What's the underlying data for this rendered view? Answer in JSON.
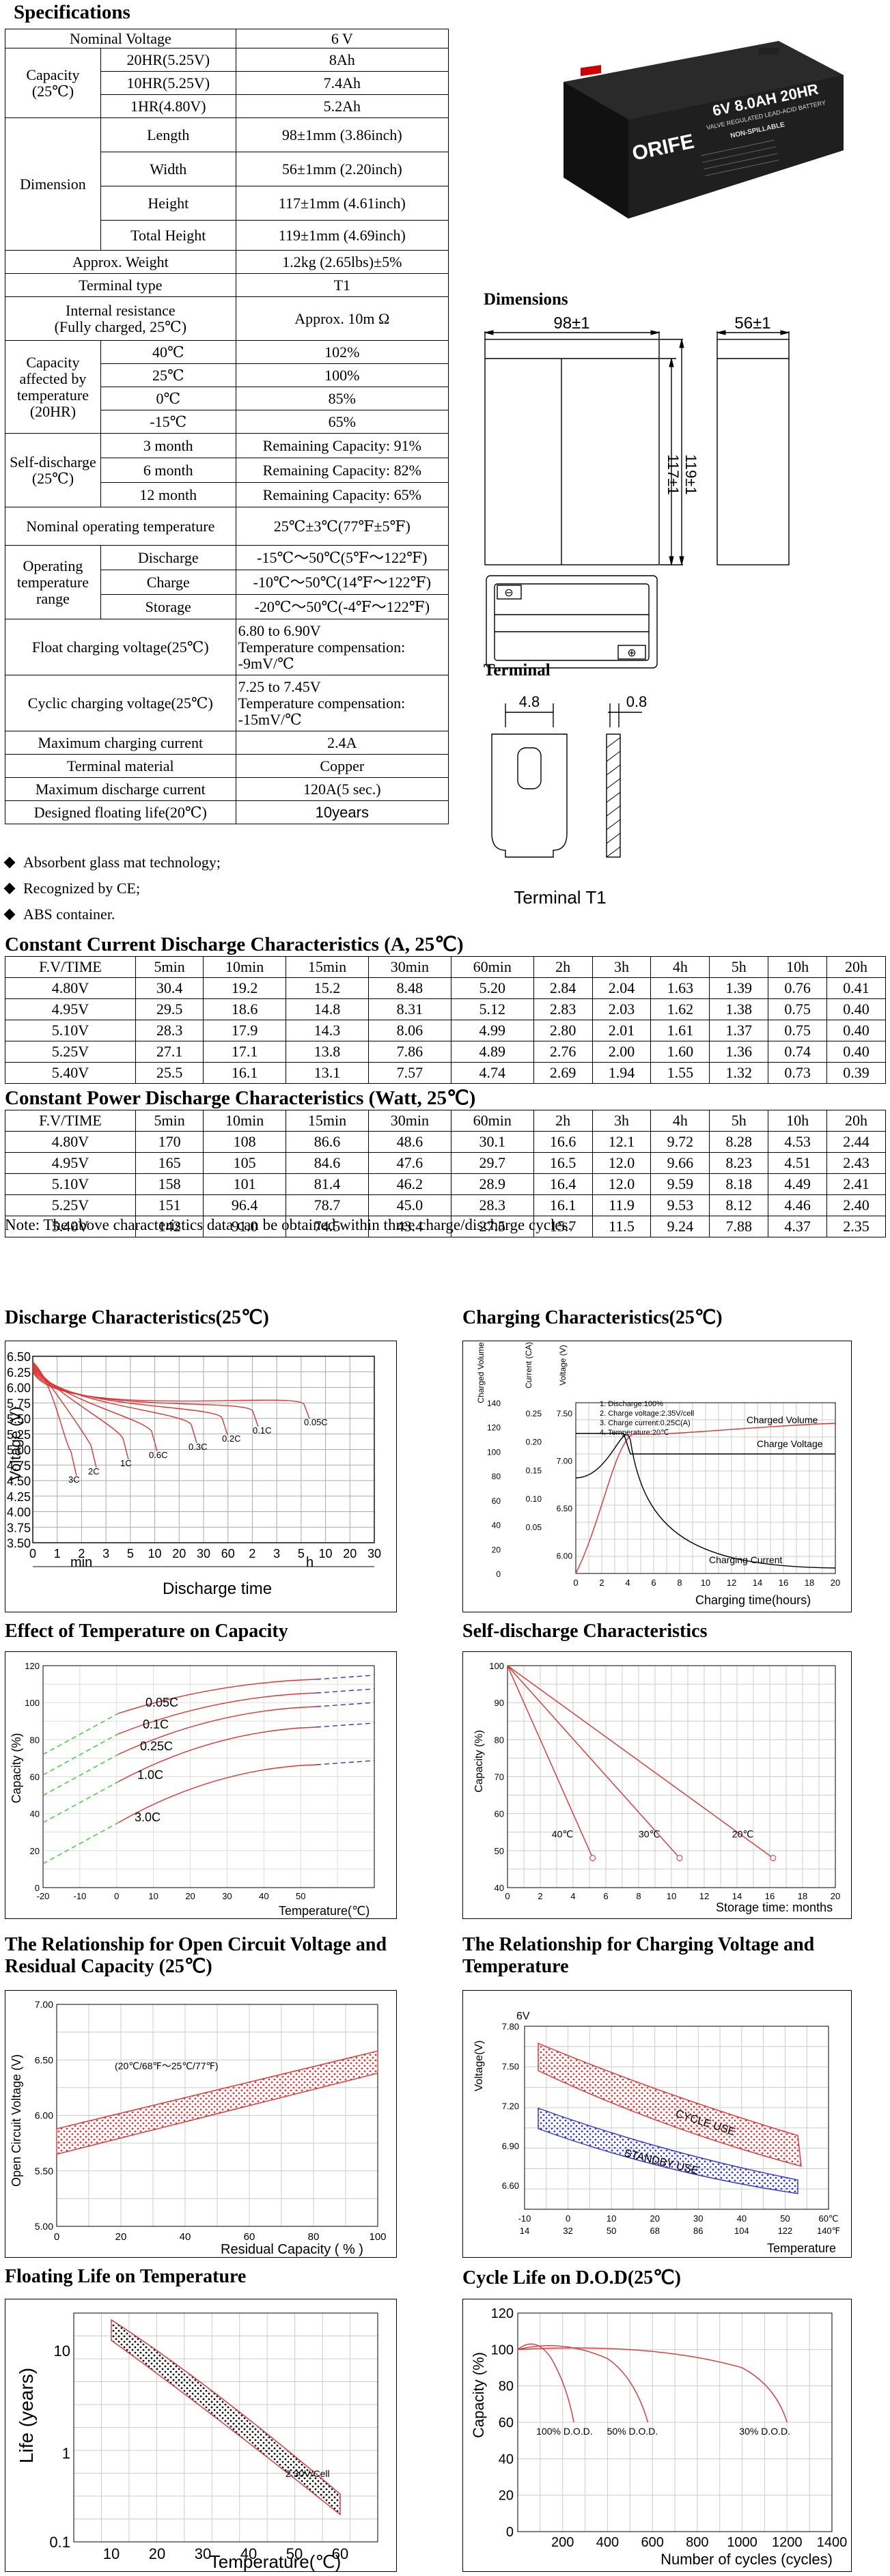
{
  "spec_title": "Specifications",
  "spec": {
    "nominal_voltage": {
      "label": "Nominal Voltage",
      "value": "6 V"
    },
    "capacity": {
      "label": "Capacity\n(25℃)",
      "rows": [
        [
          "20HR(5.25V)",
          "8Ah"
        ],
        [
          "10HR(5.25V)",
          "7.4Ah"
        ],
        [
          "1HR(4.80V)",
          "5.2Ah"
        ]
      ]
    },
    "dimension": {
      "label": "Dimension",
      "rows": [
        [
          "Length",
          "98±1mm (3.86inch)"
        ],
        [
          "Width",
          "56±1mm (2.20inch)"
        ],
        [
          "Height",
          "117±1mm (4.61inch)"
        ],
        [
          "Total Height",
          "119±1mm (4.69inch)"
        ]
      ]
    },
    "weight": {
      "label": "Approx. Weight",
      "value": "1.2kg (2.65lbs)±5%"
    },
    "terminal_type": {
      "label": "Terminal type",
      "value": "T1"
    },
    "internal_resistance": {
      "label": "Internal resistance\n(Fully charged, 25℃)",
      "value": "Approx. 10m Ω"
    },
    "cap_temp": {
      "label": "Capacity affected by temperature (20HR)",
      "rows": [
        [
          "40℃",
          "102%"
        ],
        [
          "25℃",
          "100%"
        ],
        [
          "0℃",
          "85%"
        ],
        [
          "-15℃",
          "65%"
        ]
      ]
    },
    "self_discharge": {
      "label": "Self-discharge\n(25℃)",
      "rows": [
        [
          "3 month",
          "Remaining Capacity: 91%"
        ],
        [
          "6 month",
          "Remaining Capacity: 82%"
        ],
        [
          "12 month",
          "Remaining Capacity: 65%"
        ]
      ]
    },
    "nominal_op_temp": {
      "label": "Nominal operating temperature",
      "value": "25℃±3℃(77℉±5℉)"
    },
    "op_range": {
      "label": "Operating temperature range",
      "rows": [
        [
          "Discharge",
          "-15℃～50℃(5℉～122℉)"
        ],
        [
          "Charge",
          "-10℃～50℃(14℉～122℉)"
        ],
        [
          "Storage",
          "-20℃～50℃(-4℉～122℉)"
        ]
      ]
    },
    "float_voltage": {
      "label": "Float charging voltage(25℃)",
      "value": "6.80 to 6.90V\nTemperature compensation:\n-9mV/℃"
    },
    "cyclic_voltage": {
      "label": "Cyclic charging voltage(25℃)",
      "value": "7.25 to 7.45V\nTemperature compensation:\n-15mV/℃"
    },
    "max_charge": {
      "label": "Maximum charging current",
      "value": "2.4A"
    },
    "terminal_material": {
      "label": "Terminal material",
      "value": "Copper"
    },
    "max_discharge": {
      "label": "Maximum discharge current",
      "value": "120A(5 sec.)"
    },
    "float_life": {
      "label": "Designed floating life(20℃)",
      "value": "10years"
    }
  },
  "bullets": [
    "Absorbent glass mat technology;",
    "Recognized by CE;",
    "ABS container."
  ],
  "battery": {
    "brand": "ORIFE",
    "model": "6V 8.0AH 20HR",
    "sub1": "VALVE REGULATED LEAD-ACID BATTERY",
    "sub2": "NON-SPILLABLE"
  },
  "dimensions": {
    "title": "Dimensions",
    "length": "98±1",
    "width": "56±1",
    "h1": "117±1",
    "h2": "119±1"
  },
  "terminal": {
    "title": "Terminal",
    "w1": "4.8",
    "w2": "0.8",
    "caption": "Terminal T1"
  },
  "cc_title": "Constant Current Discharge Characteristics (A, 25℃)",
  "cp_title": "Constant Power Discharge Characteristics (Watt, 25℃)",
  "table_header": [
    "F.V/TIME",
    "5min",
    "10min",
    "15min",
    "30min",
    "60min",
    "2h",
    "3h",
    "4h",
    "5h",
    "10h",
    "20h"
  ],
  "cc_rows": [
    [
      "4.80V",
      "30.4",
      "19.2",
      "15.2",
      "8.48",
      "5.20",
      "2.84",
      "2.04",
      "1.63",
      "1.39",
      "0.76",
      "0.41"
    ],
    [
      "4.95V",
      "29.5",
      "18.6",
      "14.8",
      "8.31",
      "5.12",
      "2.83",
      "2.03",
      "1.62",
      "1.38",
      "0.75",
      "0.40"
    ],
    [
      "5.10V",
      "28.3",
      "17.9",
      "14.3",
      "8.06",
      "4.99",
      "2.80",
      "2.01",
      "1.61",
      "1.37",
      "0.75",
      "0.40"
    ],
    [
      "5.25V",
      "27.1",
      "17.1",
      "13.8",
      "7.86",
      "4.89",
      "2.76",
      "2.00",
      "1.60",
      "1.36",
      "0.74",
      "0.40"
    ],
    [
      "5.40V",
      "25.5",
      "16.1",
      "13.1",
      "7.57",
      "4.74",
      "2.69",
      "1.94",
      "1.55",
      "1.32",
      "0.73",
      "0.39"
    ]
  ],
  "cp_rows": [
    [
      "4.80V",
      "170",
      "108",
      "86.6",
      "48.6",
      "30.1",
      "16.6",
      "12.1",
      "9.72",
      "8.28",
      "4.53",
      "2.44"
    ],
    [
      "4.95V",
      "165",
      "105",
      "84.6",
      "47.6",
      "29.7",
      "16.5",
      "12.0",
      "9.66",
      "8.23",
      "4.51",
      "2.43"
    ],
    [
      "5.10V",
      "158",
      "101",
      "81.4",
      "46.2",
      "28.9",
      "16.4",
      "12.0",
      "9.59",
      "8.18",
      "4.49",
      "2.41"
    ],
    [
      "5.25V",
      "151",
      "96.4",
      "78.7",
      "45.0",
      "28.3",
      "16.1",
      "11.9",
      "9.53",
      "8.12",
      "4.46",
      "2.40"
    ],
    [
      "5.40V",
      "142",
      "91.0",
      "74.5",
      "43.4",
      "27.5",
      "15.7",
      "11.5",
      "9.24",
      "7.88",
      "4.37",
      "2.35"
    ]
  ],
  "note": "Note: The above characteristics data can be obtained within three charge/discharge cycles.",
  "chart_data": [
    {
      "type": "line",
      "title": "Discharge Characteristics(25℃)",
      "ylabel": "Voltage (V)",
      "xlabel": "Discharge time",
      "ylim": [
        3.5,
        6.75
      ],
      "yticks": [
        "6.50",
        "6.25",
        "6.00",
        "5.75",
        "5.50",
        "5.25",
        "5.00",
        "4.75",
        "4.50",
        "4.25",
        "4.00",
        "3.75",
        "3.50"
      ],
      "xticks": [
        "0",
        "1",
        "2",
        "3",
        "5",
        "10",
        "20",
        "30",
        "60",
        "2",
        "3",
        "5",
        "10",
        "20",
        "30"
      ],
      "xgroups": [
        "min",
        "h"
      ],
      "series": [
        {
          "name": "3C"
        },
        {
          "name": "2C"
        },
        {
          "name": "1C"
        },
        {
          "name": "0.6C"
        },
        {
          "name": "0.3C"
        },
        {
          "name": "0.2C"
        },
        {
          "name": "0.1C"
        },
        {
          "name": "0.05C"
        }
      ]
    },
    {
      "type": "line",
      "title": "Charging Characteristics(25℃)",
      "axis_heads": [
        "Charged Volume (%)",
        "Current (CA)",
        "Voltage (V)"
      ],
      "vol_ticks": [
        "140",
        "120",
        "100",
        "80",
        "60",
        "40",
        "20",
        "0"
      ],
      "cur_ticks": [
        "0.25",
        "0.20",
        "0.15",
        "0.10",
        "0.05"
      ],
      "volt_ticks": [
        "7.50",
        "7.00",
        "6.50",
        "6.00"
      ],
      "xticks": [
        "0",
        "2",
        "4",
        "6",
        "8",
        "10",
        "12",
        "14",
        "16",
        "18",
        "20"
      ],
      "xlabel": "Charging time(hours)",
      "legend": [
        "1. Discharge:100%",
        "2. Charge voltage:2.35V/cell",
        "3. Charge current:0.25C(A)",
        "4. Temperature:20℃"
      ],
      "series": [
        {
          "name": "Charged Volume"
        },
        {
          "name": "Charge Voltage"
        },
        {
          "name": "Charging Current"
        }
      ]
    },
    {
      "type": "line",
      "title": "Effect of Temperature on Capacity",
      "ylabel": "Capacity (%)",
      "xlabel": "Temperature(℃)",
      "ylim": [
        0,
        120
      ],
      "yticks": [
        "120",
        "100",
        "80",
        "60",
        "40",
        "20",
        "0"
      ],
      "xticks": [
        "-20",
        "-10",
        "0",
        "10",
        "20",
        "30",
        "40",
        "50"
      ],
      "series": [
        {
          "name": "0.05C"
        },
        {
          "name": "0.1C"
        },
        {
          "name": "0.25C"
        },
        {
          "name": "1.0C"
        },
        {
          "name": "3.0C"
        }
      ]
    },
    {
      "type": "line",
      "title": "Self-discharge Characteristics",
      "ylabel": "Capacity (%)",
      "xlabel": "Storage time: months",
      "ylim": [
        40,
        100
      ],
      "yticks": [
        "100",
        "90",
        "80",
        "70",
        "60",
        "50",
        "40"
      ],
      "xticks": [
        "0",
        "2",
        "4",
        "6",
        "8",
        "10",
        "12",
        "14",
        "16",
        "18",
        "20"
      ],
      "series": [
        {
          "name": "40℃",
          "x": [
            0,
            5.2
          ],
          "y": [
            100,
            48
          ]
        },
        {
          "name": "30℃",
          "x": [
            0,
            10.5
          ],
          "y": [
            100,
            48
          ]
        },
        {
          "name": "20℃",
          "x": [
            0,
            16.2
          ],
          "y": [
            100,
            48
          ]
        }
      ]
    },
    {
      "type": "area",
      "title": "The Relationship for Open Circuit Voltage and Residual Capacity (25℃)",
      "ylabel": "Open Circuit Voltage (V)",
      "xlabel": "Residual Capacity ( % )",
      "ylim": [
        5.0,
        7.0
      ],
      "yticks": [
        "7.00",
        "6.50",
        "6.00",
        "5.50",
        "5.00"
      ],
      "xticks": [
        "0",
        "20",
        "40",
        "60",
        "80",
        "100"
      ],
      "band_label": "(20℃/68℉～25℃/77℉)",
      "series": [
        {
          "name": "upper",
          "x": [
            0,
            100
          ],
          "y": [
            5.88,
            6.58
          ]
        },
        {
          "name": "lower",
          "x": [
            0,
            100
          ],
          "y": [
            5.65,
            6.38
          ]
        }
      ]
    },
    {
      "type": "area",
      "title": "The Relationship for Charging Voltage and Temperature",
      "ylabel": "Voltage(V)",
      "xlabel": "Temperature",
      "unit_top": "6V",
      "yticks": [
        "7.80",
        "7.50",
        "7.20",
        "6.90",
        "6.60"
      ],
      "xticks_c": [
        "-10",
        "0",
        "10",
        "20",
        "30",
        "40",
        "50",
        "60℃"
      ],
      "xticks_f": [
        "14",
        "32",
        "50",
        "68",
        "86",
        "104",
        "122",
        "140℉"
      ],
      "series": [
        {
          "name": "CYCLE USE"
        },
        {
          "name": "STANDBY USE"
        }
      ]
    },
    {
      "type": "area",
      "title": "Floating Life on Temperature",
      "ylabel": "Life (years)",
      "xlabel": "Temperature(℃)",
      "yticks": [
        "10",
        "1",
        "0.1"
      ],
      "xticks": [
        "10",
        "20",
        "30",
        "40",
        "50",
        "60"
      ],
      "band_label": "2.30V/Cell"
    },
    {
      "type": "line",
      "title": "Cycle Life on D.O.D(25℃)",
      "ylabel": "Capacity  (%)",
      "xlabel": "Number of cycles (cycles)",
      "ylim": [
        0,
        120
      ],
      "yticks": [
        "120",
        "100",
        "80",
        "60",
        "40",
        "20",
        "0"
      ],
      "xticks": [
        "200",
        "400",
        "600",
        "800",
        "1000",
        "1200",
        "1400"
      ],
      "series": [
        {
          "name": "100% D.O.D."
        },
        {
          "name": "50% D.O.D."
        },
        {
          "name": "30% D.O.D."
        }
      ]
    }
  ]
}
